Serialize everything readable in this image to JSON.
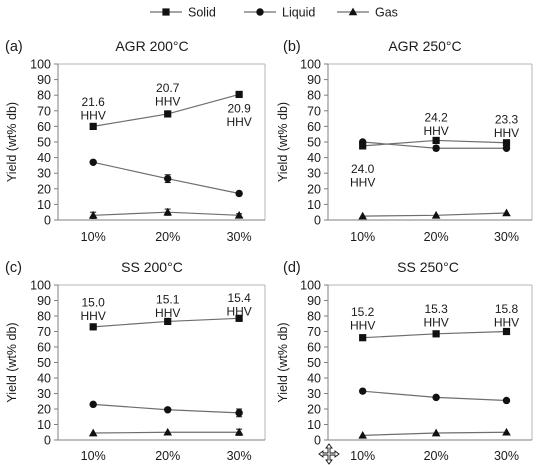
{
  "legend": [
    {
      "label": "Solid",
      "marker": "square"
    },
    {
      "label": "Liquid",
      "marker": "circle"
    },
    {
      "label": "Gas",
      "marker": "triangle"
    }
  ],
  "colors": {
    "line": "#6e6e6e",
    "marker": "#111111",
    "axis": "#7f7f7f",
    "frame": "#b5b5b5"
  },
  "chart_data": [
    {
      "type": "line",
      "panel_label": "(a)",
      "title": "AGR 200°C",
      "ylabel": "Yield (wt% db)",
      "categories": [
        "10%",
        "20%",
        "30%"
      ],
      "ylim": [
        0,
        100
      ],
      "yticks": [
        0,
        10,
        20,
        30,
        40,
        50,
        60,
        70,
        80,
        90,
        100
      ],
      "series": [
        {
          "name": "Solid",
          "marker": "square",
          "values": [
            60,
            68,
            80.5
          ]
        },
        {
          "name": "Liquid",
          "marker": "circle",
          "values": [
            37,
            26.5,
            17
          ],
          "errors": [
            0,
            2.5,
            0
          ]
        },
        {
          "name": "Gas",
          "marker": "triangle",
          "values": [
            3,
            5,
            3
          ],
          "errors": [
            2,
            2,
            1
          ]
        }
      ],
      "annotations": [
        {
          "text": [
            "21.6",
            "HHV"
          ],
          "category": 0,
          "y": 73
        },
        {
          "text": [
            "20.7",
            "HHV"
          ],
          "category": 1,
          "y": 82
        },
        {
          "text": [
            "20.9",
            "HHV"
          ],
          "category": 2,
          "y": 69
        }
      ]
    },
    {
      "type": "line",
      "panel_label": "(b)",
      "title": "AGR 250°C",
      "ylabel": "Yield (wt% db)",
      "categories": [
        "10%",
        "20%",
        "30%"
      ],
      "ylim": [
        0,
        100
      ],
      "yticks": [
        0,
        10,
        20,
        30,
        40,
        50,
        60,
        70,
        80,
        90,
        100
      ],
      "series": [
        {
          "name": "Solid",
          "marker": "square",
          "values": [
            47.5,
            51,
            49.5
          ]
        },
        {
          "name": "Liquid",
          "marker": "circle",
          "values": [
            50,
            46,
            46
          ],
          "errors": [
            0,
            1.5,
            1
          ]
        },
        {
          "name": "Gas",
          "marker": "triangle",
          "values": [
            2.5,
            3,
            4.5
          ]
        }
      ],
      "annotations": [
        {
          "text": [
            "24.0",
            "HHV"
          ],
          "category": 0,
          "y": 30
        },
        {
          "text": [
            "24.2",
            "HHV"
          ],
          "category": 1,
          "y": 63
        },
        {
          "text": [
            "23.3",
            "HHV"
          ],
          "category": 2,
          "y": 62
        }
      ]
    },
    {
      "type": "line",
      "panel_label": "(c)",
      "title": "SS 200°C",
      "ylabel": "Yield (wt% db)",
      "categories": [
        "10%",
        "20%",
        "30%"
      ],
      "ylim": [
        0,
        100
      ],
      "yticks": [
        0,
        10,
        20,
        30,
        40,
        50,
        60,
        70,
        80,
        90,
        100
      ],
      "series": [
        {
          "name": "Solid",
          "marker": "square",
          "values": [
            73,
            76.5,
            78.5
          ],
          "errors": [
            0,
            1,
            1.5
          ]
        },
        {
          "name": "Liquid",
          "marker": "circle",
          "values": [
            23,
            19.5,
            17.5
          ],
          "errors": [
            0,
            0,
            2.5
          ]
        },
        {
          "name": "Gas",
          "marker": "triangle",
          "values": [
            4.5,
            5,
            5
          ],
          "errors": [
            0,
            0,
            2
          ]
        }
      ],
      "annotations": [
        {
          "text": [
            "15.0",
            "HHV"
          ],
          "category": 0,
          "y": 86
        },
        {
          "text": [
            "15.1",
            "HHV"
          ],
          "category": 1,
          "y": 88
        },
        {
          "text": [
            "15.4",
            "HHV"
          ],
          "category": 2,
          "y": 89
        }
      ]
    },
    {
      "type": "line",
      "panel_label": "(d)",
      "title": "SS 250°C",
      "ylabel": "Yield (wt% db)",
      "categories": [
        "10%",
        "20%",
        "30%"
      ],
      "ylim": [
        0,
        100
      ],
      "yticks": [
        0,
        10,
        20,
        30,
        40,
        50,
        60,
        70,
        80,
        90,
        100
      ],
      "series": [
        {
          "name": "Solid",
          "marker": "square",
          "values": [
            66,
            68.5,
            70
          ],
          "errors": [
            0,
            1,
            1
          ]
        },
        {
          "name": "Liquid",
          "marker": "circle",
          "values": [
            31.5,
            27.5,
            25.5
          ]
        },
        {
          "name": "Gas",
          "marker": "triangle",
          "values": [
            3,
            4.5,
            5
          ]
        }
      ],
      "annotations": [
        {
          "text": [
            "15.2",
            "HHV"
          ],
          "category": 0,
          "y": 80
        },
        {
          "text": [
            "15.3",
            "HHV"
          ],
          "category": 1,
          "y": 82
        },
        {
          "text": [
            "15.8",
            "HHV"
          ],
          "category": 2,
          "y": 82
        }
      ]
    }
  ]
}
